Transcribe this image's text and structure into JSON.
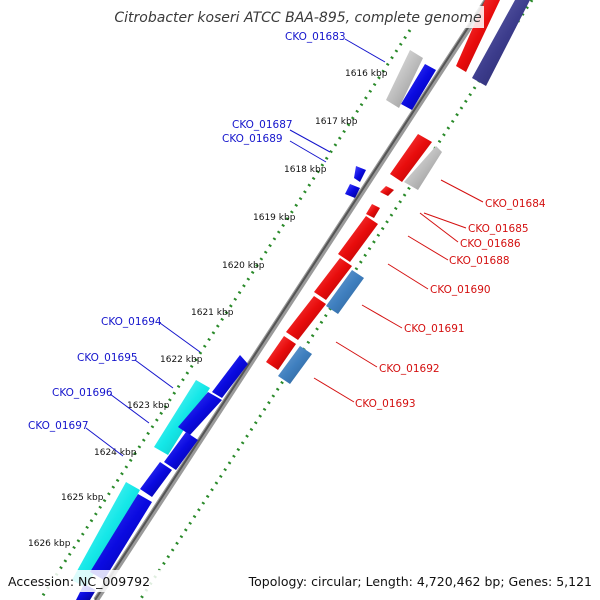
{
  "title": "Citrobacter koseri ATCC BAA-895, complete genome",
  "footer": {
    "accession": "Accession: NC_009792",
    "summary": "Topology: circular; Length: 4,720,462 bp; Genes: 5,121"
  },
  "colors": {
    "forward_gene": "#0a0ae0",
    "reverse_gene": "#e80c0c",
    "cyan_gene": "#15e8e8",
    "steelblue_gene": "#3f7fbf",
    "gray_gene": "#b8b8b8",
    "navy_gene": "#3c3c8c",
    "backbone": "#8a8a8a",
    "tick": "#2a8a2a",
    "label_blue": "#1414cc",
    "label_red": "#d41010"
  },
  "ticks": [
    "1616 kbp",
    "1617 kbp",
    "1618 kbp",
    "1619 kbp",
    "1620 kbp",
    "1621 kbp",
    "1622 kbp",
    "1623 kbp",
    "1624 kbp",
    "1625 kbp",
    "1626 kbp"
  ],
  "labels_left": [
    "CKO_01683",
    "CKO_01687",
    "CKO_01689",
    "CKO_01694",
    "CKO_01695",
    "CKO_01696",
    "CKO_01697"
  ],
  "labels_right": [
    "CKO_01684",
    "CKO_01685",
    "CKO_01686",
    "CKO_01688",
    "CKO_01690",
    "CKO_01691",
    "CKO_01692",
    "CKO_01693"
  ]
}
